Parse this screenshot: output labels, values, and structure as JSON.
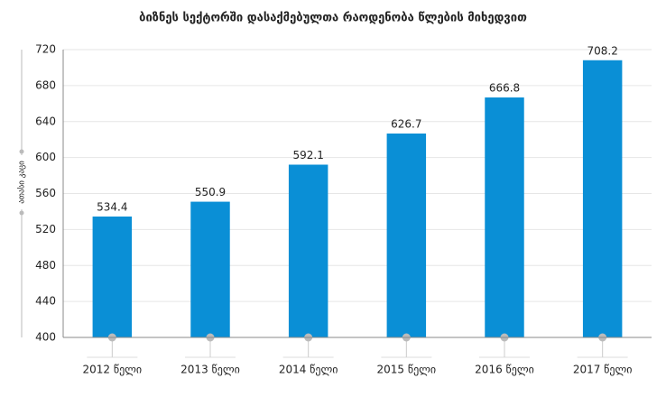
{
  "chart_data": {
    "type": "bar",
    "title": "ბიზნეს სექტორში დასაქმებულთა რაოდენობა წლების მიხედვით",
    "y_label": "ათასი კაცი",
    "categories": [
      "2012 წელი",
      "2013 წელი",
      "2014 წელი",
      "2015 წელი",
      "2016 წელი",
      "2017 წელი"
    ],
    "values": [
      534.4,
      550.9,
      592.1,
      626.7,
      666.8,
      708.2
    ],
    "color": "#0a8fd6",
    "ylim": [
      400,
      720
    ],
    "yticks": [
      400,
      440,
      480,
      520,
      560,
      600,
      640,
      680,
      720
    ],
    "grid": true
  }
}
